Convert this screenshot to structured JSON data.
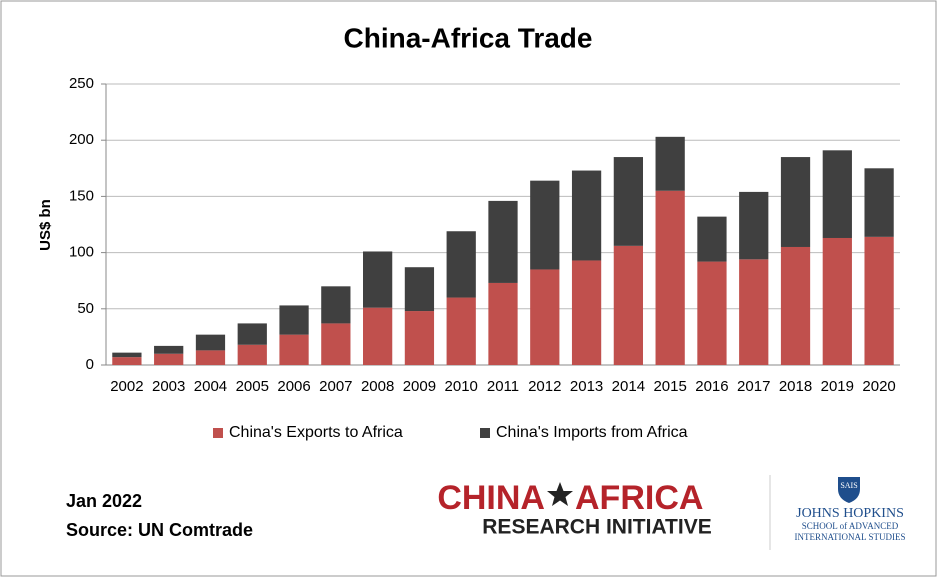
{
  "chart_data": {
    "type": "stacked_bar",
    "title": "China-Africa Trade",
    "y_label": "US$ bn",
    "categories": [
      "2002",
      "2003",
      "2004",
      "2005",
      "2006",
      "2007",
      "2008",
      "2009",
      "2010",
      "2011",
      "2012",
      "2013",
      "2014",
      "2015",
      "2016",
      "2017",
      "2018",
      "2019",
      "2020"
    ],
    "series": [
      {
        "name": "China's Exports to Africa",
        "color": "#c0504d",
        "values": [
          7,
          10,
          13,
          18,
          27,
          37,
          51,
          48,
          60,
          73,
          85,
          93,
          106,
          155,
          92,
          94,
          105,
          113,
          114
        ]
      },
      {
        "name": "China's Imports from Africa",
        "color": "#404040",
        "values": [
          4,
          7,
          14,
          19,
          26,
          33,
          50,
          39,
          59,
          73,
          79,
          80,
          79,
          48,
          40,
          60,
          80,
          78,
          61
        ]
      }
    ],
    "ylim": [
      0,
      250
    ],
    "yticks": [
      0,
      50,
      100,
      150,
      200,
      250
    ],
    "grid": true,
    "legend": "bottom"
  },
  "footer": {
    "date": "Jan 2022",
    "source": "Source: UN Comtrade"
  },
  "logos": {
    "cari_left": "CHINA",
    "cari_right": "AFRICA",
    "cari_sub": "RESEARCH INITIATIVE",
    "sais": "SAIS",
    "jhu": "JOHNS HOPKINS",
    "jhu_school": "SCHOOL of ADVANCED",
    "jhu_studies": "INTERNATIONAL STUDIES"
  }
}
